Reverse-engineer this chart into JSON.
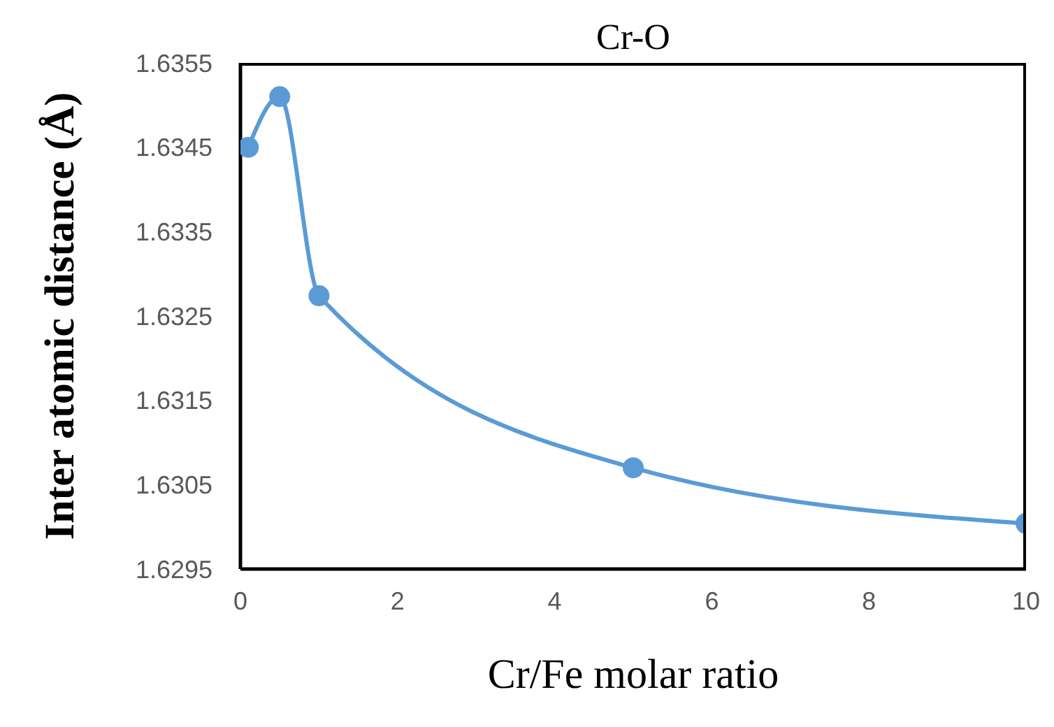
{
  "chart_data": {
    "type": "line",
    "title": "Cr-O",
    "xlabel": "Cr/Fe molar ratio",
    "ylabel": "Inter atomic distance (Å)",
    "x": [
      0.1,
      0.5,
      1,
      5,
      10
    ],
    "series": [
      {
        "color": "#5b9bd5",
        "values": [
          1.6345,
          1.6351,
          1.63274,
          1.6307,
          1.63004
        ]
      }
    ],
    "xlim": [
      0,
      10
    ],
    "xticks": [
      0,
      2,
      4,
      6,
      8,
      10
    ],
    "ylim": [
      1.6295,
      1.6355
    ],
    "yticks": [
      1.6295,
      1.6305,
      1.6315,
      1.6325,
      1.6335,
      1.6345,
      1.6355
    ],
    "grid": false,
    "legend": false,
    "marker": "circle",
    "line_style": "solid"
  }
}
